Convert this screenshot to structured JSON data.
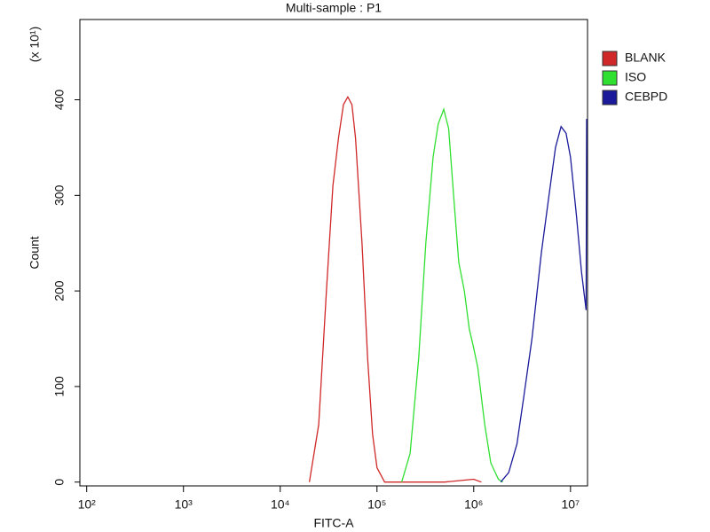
{
  "chart_data": {
    "type": "line",
    "title": "Multi-sample : P1",
    "x_label": "FITC-A",
    "y_label": "Count",
    "y_unit_label": "(x 10¹)",
    "log_x": true,
    "legend": "right",
    "xlim": [
      85,
      15000000
    ],
    "ylim": [
      -4,
      484
    ],
    "xticks": [
      {
        "value": 100,
        "label": "10²"
      },
      {
        "value": 1000,
        "label": "10³"
      },
      {
        "value": 10000,
        "label": "10⁴"
      },
      {
        "value": 100000,
        "label": "10⁵"
      },
      {
        "value": 1000000,
        "label": "10⁶"
      },
      {
        "value": 10000000,
        "label": "10⁷"
      }
    ],
    "yticks": [
      0,
      100,
      200,
      300,
      400
    ],
    "series": [
      {
        "name": "BLANK",
        "color": "#d02828",
        "x": [
          20000,
          25000,
          30000,
          35000,
          40000,
          45000,
          50000,
          55000,
          60000,
          70000,
          80000,
          90000,
          100000,
          120000,
          500000,
          800000,
          1000000,
          1200000
        ],
        "values": [
          0,
          60,
          200,
          310,
          360,
          395,
          403,
          395,
          360,
          250,
          130,
          50,
          15,
          0,
          0,
          2,
          3,
          0
        ]
      },
      {
        "name": "ISO",
        "color": "#30e030",
        "x": [
          180000,
          220000,
          270000,
          320000,
          380000,
          430000,
          490000,
          550000,
          620000,
          700000,
          800000,
          900000,
          1000000,
          1100000,
          1300000,
          1500000,
          1800000,
          2000000
        ],
        "values": [
          0,
          30,
          130,
          250,
          340,
          375,
          390,
          370,
          300,
          230,
          200,
          160,
          140,
          120,
          60,
          20,
          3,
          0
        ]
      },
      {
        "name": "CEBPD",
        "color": "#1a1a9a",
        "x": [
          1900000,
          2300000,
          2800000,
          3300000,
          4000000,
          5000000,
          6000000,
          7000000,
          8000000,
          9000000,
          10000000,
          11500000,
          13000000,
          14500000,
          14700000
        ],
        "values": [
          0,
          10,
          40,
          90,
          150,
          240,
          300,
          350,
          372,
          365,
          340,
          280,
          220,
          180,
          380
        ]
      }
    ]
  }
}
